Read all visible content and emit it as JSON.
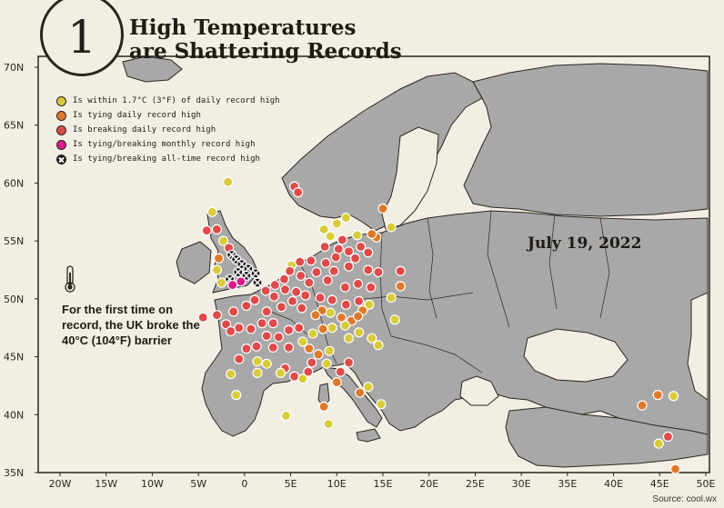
{
  "badge": {
    "number": "1"
  },
  "title": {
    "line1": "High Temperatures",
    "line2": "are Shattering Records"
  },
  "date": "July 19, 2022",
  "note": "For the first time on record, the UK broke the 40°C (104°F) barrier",
  "source": "Source: cool.wx",
  "colors": {
    "yellow": "#d8cc3a",
    "orange": "#e0782a",
    "red": "#e04a4a",
    "magenta": "#d81a8a",
    "black": "#1a1a1a",
    "land": "#a8a8a8",
    "sea": "#f3eee3"
  },
  "legend": [
    {
      "key": "yellow",
      "label": "Is within 1.7°C (3°F) of daily record high"
    },
    {
      "key": "orange",
      "label": "Is tying daily record high"
    },
    {
      "key": "red",
      "label": "Is breaking daily record high"
    },
    {
      "key": "magenta",
      "label": "Is tying/breaking monthly record high"
    },
    {
      "key": "black",
      "label": "Is tying/breaking all-time record high"
    }
  ],
  "axes": {
    "lat_ticks": [
      "70N",
      "65N",
      "60N",
      "55N",
      "50N",
      "45N",
      "40N",
      "35N"
    ],
    "lon_ticks": [
      "20W",
      "15W",
      "10W",
      "5W",
      "0",
      "5E",
      "10E",
      "15E",
      "20E",
      "25E",
      "30E",
      "35E",
      "40E",
      "45E",
      "50E"
    ],
    "lat_range": [
      35,
      70
    ],
    "lon_range": [
      -20,
      50
    ]
  },
  "points": [
    {
      "lon": -1.8,
      "lat": 60.1,
      "k": "yellow"
    },
    {
      "lon": -3.5,
      "lat": 57.5,
      "k": "yellow"
    },
    {
      "lon": -4.1,
      "lat": 55.9,
      "k": "red"
    },
    {
      "lon": -3.0,
      "lat": 56.0,
      "k": "red"
    },
    {
      "lon": -2.3,
      "lat": 55.0,
      "k": "yellow"
    },
    {
      "lon": -1.7,
      "lat": 54.4,
      "k": "red"
    },
    {
      "lon": -1.4,
      "lat": 53.8,
      "k": "black"
    },
    {
      "lon": -0.9,
      "lat": 53.4,
      "k": "black"
    },
    {
      "lon": -0.3,
      "lat": 53.0,
      "k": "black"
    },
    {
      "lon": 0.4,
      "lat": 52.6,
      "k": "black"
    },
    {
      "lon": -0.7,
      "lat": 52.3,
      "k": "black"
    },
    {
      "lon": 0.2,
      "lat": 52.0,
      "k": "black"
    },
    {
      "lon": 1.2,
      "lat": 52.2,
      "k": "black"
    },
    {
      "lon": -1.6,
      "lat": 51.7,
      "k": "black"
    },
    {
      "lon": -0.4,
      "lat": 51.5,
      "k": "magenta"
    },
    {
      "lon": -1.3,
      "lat": 51.2,
      "k": "magenta"
    },
    {
      "lon": -2.5,
      "lat": 51.4,
      "k": "yellow"
    },
    {
      "lon": -3.0,
      "lat": 52.5,
      "k": "yellow"
    },
    {
      "lon": -2.8,
      "lat": 53.5,
      "k": "orange"
    },
    {
      "lon": 1.4,
      "lat": 51.4,
      "k": "black"
    },
    {
      "lon": 5.1,
      "lat": 52.9,
      "k": "yellow"
    },
    {
      "lon": 5.4,
      "lat": 59.7,
      "k": "red"
    },
    {
      "lon": 5.8,
      "lat": 59.2,
      "k": "red"
    },
    {
      "lon": 8.6,
      "lat": 56.0,
      "k": "yellow"
    },
    {
      "lon": 9.3,
      "lat": 55.4,
      "k": "yellow"
    },
    {
      "lon": 10.0,
      "lat": 56.5,
      "k": "yellow"
    },
    {
      "lon": 11.0,
      "lat": 57.0,
      "k": "yellow"
    },
    {
      "lon": 12.2,
      "lat": 55.5,
      "k": "yellow"
    },
    {
      "lon": 10.6,
      "lat": 55.1,
      "k": "red"
    },
    {
      "lon": 14.3,
      "lat": 55.3,
      "k": "orange"
    },
    {
      "lon": 13.8,
      "lat": 55.6,
      "k": "orange"
    },
    {
      "lon": 15.0,
      "lat": 57.8,
      "k": "orange"
    },
    {
      "lon": 15.9,
      "lat": 56.2,
      "k": "yellow"
    },
    {
      "lon": 8.7,
      "lat": 54.5,
      "k": "red"
    },
    {
      "lon": 10.2,
      "lat": 54.3,
      "k": "red"
    },
    {
      "lon": 11.3,
      "lat": 54.1,
      "k": "red"
    },
    {
      "lon": 12.6,
      "lat": 54.5,
      "k": "red"
    },
    {
      "lon": 13.4,
      "lat": 54.0,
      "k": "red"
    },
    {
      "lon": 12.0,
      "lat": 53.5,
      "k": "red"
    },
    {
      "lon": 9.9,
      "lat": 53.6,
      "k": "red"
    },
    {
      "lon": 8.8,
      "lat": 53.1,
      "k": "red"
    },
    {
      "lon": 7.2,
      "lat": 53.3,
      "k": "red"
    },
    {
      "lon": 6.0,
      "lat": 53.2,
      "k": "red"
    },
    {
      "lon": 7.8,
      "lat": 52.3,
      "k": "red"
    },
    {
      "lon": 9.7,
      "lat": 52.4,
      "k": "red"
    },
    {
      "lon": 11.3,
      "lat": 52.8,
      "k": "red"
    },
    {
      "lon": 13.4,
      "lat": 52.5,
      "k": "red"
    },
    {
      "lon": 14.5,
      "lat": 52.3,
      "k": "red"
    },
    {
      "lon": 12.3,
      "lat": 51.3,
      "k": "red"
    },
    {
      "lon": 10.9,
      "lat": 51.0,
      "k": "red"
    },
    {
      "lon": 9.0,
      "lat": 51.6,
      "k": "red"
    },
    {
      "lon": 7.0,
      "lat": 51.4,
      "k": "red"
    },
    {
      "lon": 6.1,
      "lat": 52.0,
      "k": "red"
    },
    {
      "lon": 4.9,
      "lat": 52.4,
      "k": "red"
    },
    {
      "lon": 4.3,
      "lat": 51.7,
      "k": "red"
    },
    {
      "lon": 3.3,
      "lat": 51.2,
      "k": "red"
    },
    {
      "lon": 4.4,
      "lat": 50.8,
      "k": "red"
    },
    {
      "lon": 5.6,
      "lat": 50.6,
      "k": "red"
    },
    {
      "lon": 6.6,
      "lat": 50.3,
      "k": "red"
    },
    {
      "lon": 8.2,
      "lat": 50.1,
      "k": "red"
    },
    {
      "lon": 9.5,
      "lat": 49.9,
      "k": "red"
    },
    {
      "lon": 11.0,
      "lat": 49.5,
      "k": "red"
    },
    {
      "lon": 12.4,
      "lat": 49.8,
      "k": "red"
    },
    {
      "lon": 13.7,
      "lat": 51.0,
      "k": "red"
    },
    {
      "lon": 15.9,
      "lat": 50.1,
      "k": "yellow"
    },
    {
      "lon": 16.9,
      "lat": 52.4,
      "k": "red"
    },
    {
      "lon": 16.9,
      "lat": 51.1,
      "k": "orange"
    },
    {
      "lon": 13.5,
      "lat": 49.5,
      "k": "yellow"
    },
    {
      "lon": 12.8,
      "lat": 49.0,
      "k": "orange"
    },
    {
      "lon": 11.6,
      "lat": 48.1,
      "k": "orange"
    },
    {
      "lon": 12.3,
      "lat": 48.5,
      "k": "orange"
    },
    {
      "lon": 10.5,
      "lat": 48.4,
      "k": "orange"
    },
    {
      "lon": 9.3,
      "lat": 48.8,
      "k": "yellow"
    },
    {
      "lon": 8.4,
      "lat": 49.0,
      "k": "orange"
    },
    {
      "lon": 7.7,
      "lat": 48.6,
      "k": "orange"
    },
    {
      "lon": 10.9,
      "lat": 47.7,
      "k": "yellow"
    },
    {
      "lon": 9.5,
      "lat": 47.5,
      "k": "yellow"
    },
    {
      "lon": 8.5,
      "lat": 47.4,
      "k": "orange"
    },
    {
      "lon": 7.4,
      "lat": 47.0,
      "k": "yellow"
    },
    {
      "lon": 6.3,
      "lat": 46.3,
      "k": "yellow"
    },
    {
      "lon": 7.0,
      "lat": 45.7,
      "k": "orange"
    },
    {
      "lon": 8.0,
      "lat": 45.2,
      "k": "orange"
    },
    {
      "lon": 9.2,
      "lat": 45.5,
      "k": "yellow"
    },
    {
      "lon": 11.3,
      "lat": 46.6,
      "k": "yellow"
    },
    {
      "lon": 12.4,
      "lat": 47.1,
      "k": "yellow"
    },
    {
      "lon": 13.8,
      "lat": 46.6,
      "k": "yellow"
    },
    {
      "lon": 14.5,
      "lat": 46.0,
      "k": "yellow"
    },
    {
      "lon": 16.3,
      "lat": 48.2,
      "k": "yellow"
    },
    {
      "lon": -4.5,
      "lat": 48.4,
      "k": "red"
    },
    {
      "lon": -3.0,
      "lat": 48.6,
      "k": "red"
    },
    {
      "lon": -2.0,
      "lat": 47.8,
      "k": "red"
    },
    {
      "lon": -1.2,
      "lat": 48.9,
      "k": "red"
    },
    {
      "lon": 0.2,
      "lat": 49.4,
      "k": "red"
    },
    {
      "lon": 1.1,
      "lat": 49.9,
      "k": "red"
    },
    {
      "lon": 2.3,
      "lat": 50.7,
      "k": "red"
    },
    {
      "lon": 2.4,
      "lat": 48.9,
      "k": "red"
    },
    {
      "lon": 3.2,
      "lat": 50.2,
      "k": "red"
    },
    {
      "lon": 4.0,
      "lat": 49.3,
      "k": "red"
    },
    {
      "lon": 5.2,
      "lat": 49.8,
      "k": "red"
    },
    {
      "lon": 6.2,
      "lat": 49.2,
      "k": "red"
    },
    {
      "lon": 3.1,
      "lat": 47.9,
      "k": "red"
    },
    {
      "lon": 1.9,
      "lat": 47.9,
      "k": "red"
    },
    {
      "lon": 0.7,
      "lat": 47.4,
      "k": "red"
    },
    {
      "lon": -0.6,
      "lat": 47.5,
      "k": "red"
    },
    {
      "lon": -1.5,
      "lat": 47.2,
      "k": "red"
    },
    {
      "lon": 2.4,
      "lat": 46.8,
      "k": "red"
    },
    {
      "lon": 3.7,
      "lat": 46.7,
      "k": "red"
    },
    {
      "lon": 4.8,
      "lat": 47.3,
      "k": "red"
    },
    {
      "lon": 5.9,
      "lat": 47.5,
      "k": "red"
    },
    {
      "lon": 4.8,
      "lat": 45.8,
      "k": "red"
    },
    {
      "lon": 3.1,
      "lat": 45.8,
      "k": "red"
    },
    {
      "lon": 1.3,
      "lat": 45.9,
      "k": "red"
    },
    {
      "lon": 0.2,
      "lat": 45.7,
      "k": "red"
    },
    {
      "lon": -0.6,
      "lat": 44.8,
      "k": "red"
    },
    {
      "lon": 1.4,
      "lat": 44.6,
      "k": "yellow"
    },
    {
      "lon": 2.4,
      "lat": 44.4,
      "k": "yellow"
    },
    {
      "lon": 4.4,
      "lat": 44.0,
      "k": "red"
    },
    {
      "lon": 5.4,
      "lat": 43.3,
      "k": "red"
    },
    {
      "lon": 3.9,
      "lat": 43.6,
      "k": "yellow"
    },
    {
      "lon": 1.4,
      "lat": 43.6,
      "k": "yellow"
    },
    {
      "lon": -1.5,
      "lat": 43.5,
      "k": "yellow"
    },
    {
      "lon": 6.9,
      "lat": 43.7,
      "k": "red"
    },
    {
      "lon": 7.3,
      "lat": 44.5,
      "k": "red"
    },
    {
      "lon": 8.9,
      "lat": 44.4,
      "k": "yellow"
    },
    {
      "lon": 10.4,
      "lat": 43.7,
      "k": "red"
    },
    {
      "lon": 11.3,
      "lat": 44.5,
      "k": "red"
    },
    {
      "lon": 10.0,
      "lat": 42.8,
      "k": "orange"
    },
    {
      "lon": 12.5,
      "lat": 41.9,
      "k": "orange"
    },
    {
      "lon": 13.4,
      "lat": 42.4,
      "k": "yellow"
    },
    {
      "lon": 14.8,
      "lat": 40.9,
      "k": "yellow"
    },
    {
      "lon": 9.1,
      "lat": 39.2,
      "k": "yellow"
    },
    {
      "lon": 8.6,
      "lat": 40.7,
      "k": "orange"
    },
    {
      "lon": 4.5,
      "lat": 39.9,
      "k": "yellow"
    },
    {
      "lon": 6.3,
      "lat": 43.1,
      "k": "yellow"
    },
    {
      "lon": -0.9,
      "lat": 41.7,
      "k": "yellow"
    },
    {
      "lon": 46.5,
      "lat": 41.6,
      "k": "yellow"
    },
    {
      "lon": 44.8,
      "lat": 41.7,
      "k": "orange"
    },
    {
      "lon": 43.1,
      "lat": 40.8,
      "k": "orange"
    },
    {
      "lon": 45.9,
      "lat": 38.1,
      "k": "red"
    },
    {
      "lon": 44.9,
      "lat": 37.5,
      "k": "yellow"
    },
    {
      "lon": 46.7,
      "lat": 35.3,
      "k": "orange"
    }
  ]
}
